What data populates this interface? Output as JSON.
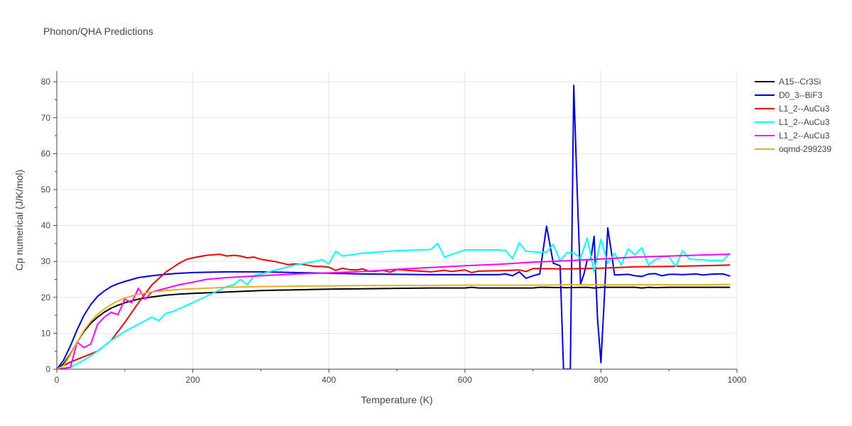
{
  "chart_data": {
    "type": "line",
    "title": "Phonon/QHA Predictions",
    "xlabel": "Temperature (K)",
    "ylabel": "Cp numerical (J/K/mol)",
    "xlim": [
      0,
      1000
    ],
    "ylim": [
      0,
      83
    ],
    "xticks": [
      0,
      200,
      400,
      600,
      800,
      1000
    ],
    "yticks": [
      0,
      10,
      20,
      30,
      40,
      50,
      60,
      70,
      80
    ],
    "xtick_labels": [
      "0",
      "200",
      "400",
      "600",
      "800",
      "1000"
    ],
    "ytick_labels": [
      "0",
      "10",
      "20",
      "30",
      "40",
      "50",
      "60",
      "70",
      "80"
    ],
    "grid": true,
    "legend_position": "right",
    "series": [
      {
        "name": "A15--Cr3Si",
        "color": "#000000",
        "x": [
          0,
          10,
          20,
          30,
          40,
          50,
          60,
          70,
          80,
          90,
          100,
          120,
          140,
          160,
          180,
          200,
          250,
          300,
          350,
          400,
          450,
          500,
          550,
          600,
          610,
          620,
          650,
          700,
          710,
          750,
          780,
          790,
          800,
          850,
          860,
          870,
          880,
          900,
          950,
          990
        ],
        "y": [
          0,
          1.5,
          4.2,
          7.5,
          10.5,
          12.8,
          14.5,
          15.9,
          17.0,
          17.8,
          18.5,
          19.5,
          20.1,
          20.6,
          20.9,
          21.1,
          21.5,
          21.9,
          22.1,
          22.3,
          22.4,
          22.5,
          22.6,
          22.6,
          22.8,
          22.6,
          22.6,
          22.6,
          22.8,
          22.7,
          22.8,
          22.6,
          22.8,
          22.8,
          22.6,
          22.8,
          22.7,
          22.8,
          22.8,
          22.8
        ]
      },
      {
        "name": "D0_3--BiF3",
        "color": "#0000dd",
        "x": [
          0,
          10,
          20,
          30,
          40,
          50,
          60,
          70,
          80,
          90,
          100,
          120,
          140,
          160,
          180,
          200,
          250,
          300,
          350,
          400,
          450,
          500,
          550,
          600,
          650,
          660,
          670,
          680,
          690,
          700,
          710,
          720,
          730,
          740,
          745,
          750,
          755,
          760,
          765,
          770,
          775,
          780,
          785,
          790,
          795,
          800,
          805,
          810,
          815,
          820,
          830,
          840,
          850,
          860,
          870,
          880,
          890,
          900,
          910,
          920,
          930,
          940,
          950,
          960,
          970,
          980,
          990
        ],
        "y": [
          0,
          2.5,
          6.5,
          11,
          15,
          18,
          20.3,
          21.8,
          23,
          23.8,
          24.4,
          25.5,
          26,
          26.4,
          26.7,
          26.9,
          27.1,
          27.1,
          26.9,
          26.7,
          26.5,
          26.4,
          26.3,
          26.3,
          26.3,
          26.5,
          26.0,
          27.1,
          25.3,
          26.0,
          26.5,
          39.8,
          29.5,
          28.8,
          0,
          0,
          0,
          79,
          50,
          23.7,
          26.5,
          30.5,
          30.5,
          37,
          14,
          1.8,
          20,
          39.3,
          33,
          26.2,
          26.3,
          26.4,
          26.0,
          25.8,
          26.5,
          26.6,
          26.0,
          26.4,
          26.4,
          26.3,
          26.4,
          26.5,
          26.2,
          26.4,
          26.5,
          26.5,
          25.9
        ]
      },
      {
        "name": "L1_2--AuCu3",
        "color": "#ee0000",
        "x": [
          0,
          20,
          40,
          60,
          80,
          100,
          120,
          140,
          160,
          180,
          190,
          200,
          220,
          240,
          250,
          260,
          270,
          280,
          290,
          300,
          320,
          340,
          350,
          360,
          370,
          380,
          390,
          400,
          410,
          420,
          430,
          440,
          450,
          460,
          470,
          480,
          490,
          500,
          550,
          570,
          580,
          600,
          610,
          620,
          650,
          680,
          690,
          700,
          750,
          800,
          850,
          900,
          950,
          990
        ],
        "y": [
          0,
          2,
          3.5,
          5,
          8,
          13,
          18.5,
          23.5,
          27,
          29.5,
          30.5,
          31,
          31.7,
          32,
          31.5,
          31.7,
          31.5,
          31,
          31.2,
          30.6,
          30,
          29.1,
          29.3,
          29.2,
          28.9,
          28.6,
          28.6,
          28.4,
          27.5,
          28.1,
          27.7,
          27.6,
          27.9,
          27.2,
          27.3,
          27.5,
          27.0,
          27.7,
          27.1,
          27.5,
          27.2,
          27.6,
          26.9,
          27.3,
          27.4,
          27.6,
          27.2,
          28.0,
          27.9,
          28.1,
          28.5,
          28.6,
          28.8,
          29.0
        ]
      },
      {
        "name": "L1_2--AuCu3",
        "color": "#00ffff",
        "x": [
          0,
          20,
          40,
          60,
          80,
          100,
          120,
          140,
          150,
          160,
          170,
          200,
          250,
          260,
          270,
          280,
          290,
          300,
          350,
          380,
          390,
          400,
          410,
          420,
          450,
          500,
          550,
          560,
          570,
          600,
          650,
          660,
          670,
          680,
          690,
          700,
          710,
          720,
          730,
          740,
          750,
          760,
          770,
          780,
          790,
          800,
          810,
          820,
          830,
          840,
          850,
          860,
          870,
          880,
          890,
          900,
          910,
          920,
          930,
          940,
          950,
          960,
          970,
          980,
          990
        ],
        "y": [
          0,
          0.5,
          2.5,
          5,
          8,
          10.5,
          12.5,
          14.5,
          13.5,
          15.5,
          16,
          18.5,
          23,
          23.5,
          25,
          23.5,
          26,
          26.5,
          29,
          30,
          30.5,
          29.3,
          32.8,
          31.5,
          32.3,
          33.0,
          33.3,
          35,
          31.2,
          33.2,
          33.2,
          33.0,
          30.8,
          35.2,
          32.8,
          32.7,
          32.5,
          32.6,
          34.7,
          30.2,
          32.4,
          32.4,
          30.9,
          36.5,
          27.1,
          36.2,
          29.5,
          32.3,
          29.0,
          33.5,
          31.8,
          33.8,
          29.0,
          30.5,
          31.3,
          31.3,
          28.6,
          33.0,
          30.7,
          30.5,
          30.5,
          30.3,
          30.3,
          30.3,
          32.3
        ]
      },
      {
        "name": "L1_2--AuCu3",
        "color": "#ff00ff",
        "x": [
          0,
          20,
          30,
          40,
          50,
          60,
          70,
          80,
          90,
          100,
          110,
          120,
          130,
          140,
          160,
          180,
          200,
          220,
          250,
          300,
          350,
          400,
          450,
          500,
          550,
          600,
          650,
          700,
          750,
          800,
          850,
          900,
          950,
          990
        ],
        "y": [
          0,
          0.5,
          7.5,
          6,
          7,
          12.5,
          14.5,
          15.8,
          15.2,
          19.5,
          18.5,
          22.5,
          19.5,
          21.5,
          22.5,
          23.5,
          24.2,
          25,
          25.5,
          26,
          26.5,
          26.8,
          27.2,
          27.8,
          28.3,
          28.8,
          29.2,
          29.8,
          30.2,
          30.7,
          31.2,
          31.5,
          31.8,
          32.0
        ]
      },
      {
        "name": "oqmd-299239",
        "color": "#e6b020",
        "x": [
          0,
          10,
          20,
          30,
          40,
          50,
          60,
          70,
          80,
          90,
          100,
          120,
          140,
          160,
          180,
          200,
          250,
          300,
          350,
          400,
          450,
          500,
          550,
          600,
          650,
          700,
          750,
          800,
          850,
          900,
          950,
          990
        ],
        "y": [
          0,
          1,
          4,
          7.5,
          10.8,
          13.3,
          15.3,
          16.8,
          18.0,
          19.0,
          19.8,
          20.9,
          21.5,
          21.9,
          22.2,
          22.4,
          22.8,
          23.0,
          23.1,
          23.2,
          23.3,
          23.3,
          23.3,
          23.4,
          23.4,
          23.4,
          23.5,
          23.5,
          23.5,
          23.5,
          23.5,
          23.6
        ]
      }
    ]
  }
}
